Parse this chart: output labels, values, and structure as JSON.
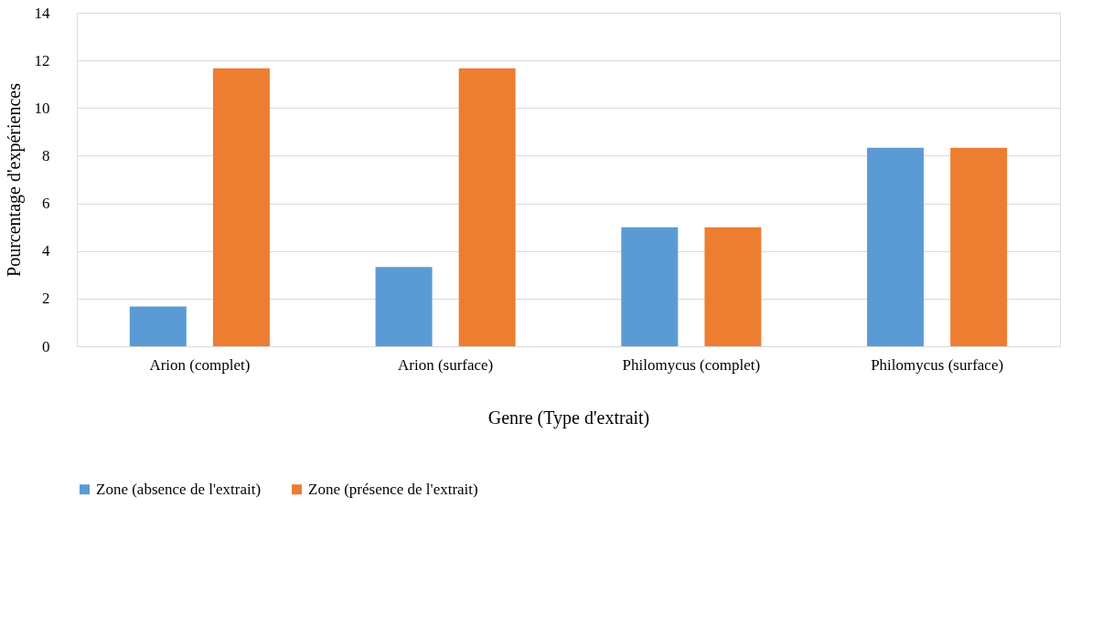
{
  "chart_data": {
    "type": "bar",
    "xlabel": "Genre (Type d'extrait)",
    "ylabel": "Pourcentage d'expériences",
    "categories": [
      "Arion (complet)",
      "Arion (surface)",
      "Philomycus (complet)",
      "Philomycus (surface)"
    ],
    "series": [
      {
        "name": "Zone (absence de l'extrait)",
        "color": "#5b9bd5",
        "values": [
          1.67,
          3.33,
          5,
          8.33
        ]
      },
      {
        "name": "Zone (présence de l'extrait)",
        "color": "#ed7d31",
        "values": [
          11.67,
          11.67,
          5,
          8.33
        ]
      }
    ],
    "ylim": [
      0,
      14
    ],
    "yticks": [
      0,
      2,
      4,
      6,
      8,
      10,
      12,
      14
    ],
    "grid": "y",
    "legend": "bottom"
  }
}
